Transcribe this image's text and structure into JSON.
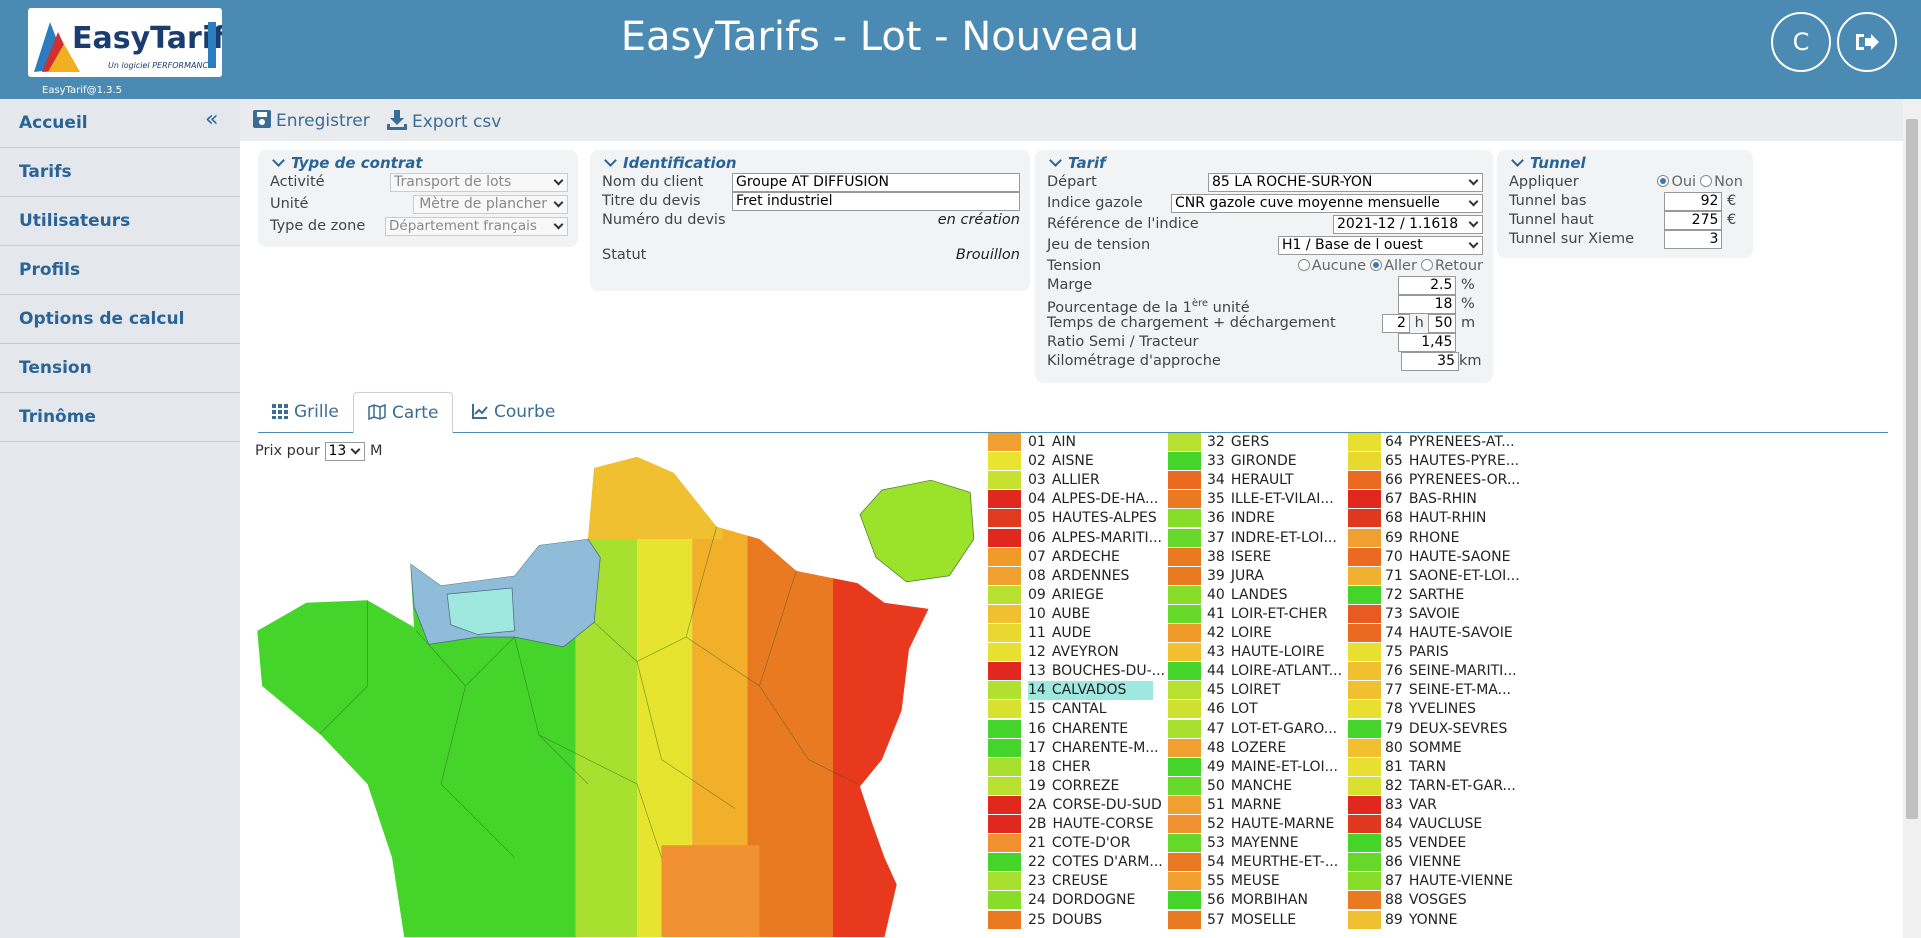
{
  "header": {
    "logo_text": "EasyTarifs",
    "logo_tagline": "Un logiciel PERFORMANCE",
    "version": "EasyTarif@1.3.5",
    "title": "EasyTarifs - Lot - Nouveau",
    "user_initial": "C"
  },
  "sidebar": {
    "items": [
      "Accueil",
      "Tarifs",
      "Utilisateurs",
      "Profils",
      "Options de calcul",
      "Tension",
      "Trinôme"
    ]
  },
  "toolbar": {
    "save": "Enregistrer",
    "export": "Export csv"
  },
  "contrat": {
    "title": "Type de contrat",
    "fields": [
      {
        "label": "Activité",
        "value": "Transport de lots"
      },
      {
        "label": "Unité",
        "value": "Mètre de plancher"
      },
      {
        "label": "Type de zone",
        "value": "Département français"
      }
    ]
  },
  "identification": {
    "title": "Identification",
    "fields": [
      {
        "label": "Nom du client",
        "value": "Groupe AT DIFFUSION"
      },
      {
        "label": "Titre du devis",
        "value": "Fret industriel"
      },
      {
        "label": "Numéro du devis",
        "value": "en création"
      },
      {
        "label": "Statut",
        "value": "Brouillon"
      }
    ]
  },
  "tarif": {
    "title": "Tarif",
    "depart": {
      "label": "Départ",
      "value": "85 LA ROCHE-SUR-YON"
    },
    "indice": {
      "label": "Indice gazole",
      "value": "CNR gazole cuve moyenne mensuelle"
    },
    "reference": {
      "label": "Référence de l'indice",
      "value": "2021-12 / 1.1618"
    },
    "jeu": {
      "label": "Jeu de tension",
      "value": "H1 / Base de l ouest"
    },
    "tension": {
      "label": "Tension",
      "options": [
        "Aucune",
        "Aller",
        "Retour"
      ]
    },
    "marge": {
      "label": "Marge",
      "value": "2.5",
      "unit": "%"
    },
    "pourcentage": {
      "label_parts": [
        "Pourcentage de la 1",
        "ère",
        " unité"
      ],
      "value": "18",
      "unit": "%"
    },
    "temps": {
      "label": "Temps de chargement + déchargement",
      "hours": "2",
      "h": "h",
      "minutes": "50",
      "m": "m"
    },
    "ratio": {
      "label": "Ratio Semi / Tracteur",
      "value": "1,45"
    },
    "km": {
      "label": "Kilométrage d'approche",
      "value": "35",
      "unit": "km"
    }
  },
  "tunnel": {
    "title": "Tunnel",
    "appliquer": {
      "label": "Appliquer",
      "options": [
        "Oui",
        "Non"
      ]
    },
    "bas": {
      "label": "Tunnel bas",
      "value": "92",
      "unit": "€"
    },
    "haut": {
      "label": "Tunnel haut",
      "value": "275",
      "unit": "€"
    },
    "xieme": {
      "label": "Tunnel sur Xieme",
      "value": "3"
    }
  },
  "tabs": [
    "Grille",
    "Carte",
    "Courbe"
  ],
  "prix": {
    "label": "Prix pour",
    "value": "13",
    "unit": "M"
  },
  "departments": [
    {
      "code": "01",
      "name": "AIN",
      "color": "#f0a030"
    },
    {
      "code": "02",
      "name": "AISNE",
      "color": "#e8e430"
    },
    {
      "code": "03",
      "name": "ALLIER",
      "color": "#c8e030"
    },
    {
      "code": "04",
      "name": "ALPES-DE-HA...",
      "color": "#e0281e"
    },
    {
      "code": "05",
      "name": "HAUTES-ALPES",
      "color": "#e03a20"
    },
    {
      "code": "06",
      "name": "ALPES-MARITI...",
      "color": "#e0281e"
    },
    {
      "code": "07",
      "name": "ARDECHE",
      "color": "#f09a2a"
    },
    {
      "code": "08",
      "name": "ARDENNES",
      "color": "#f0a030"
    },
    {
      "code": "09",
      "name": "ARIEGE",
      "color": "#b8e030"
    },
    {
      "code": "10",
      "name": "AUBE",
      "color": "#f0c030"
    },
    {
      "code": "11",
      "name": "AUDE",
      "color": "#e8d830"
    },
    {
      "code": "12",
      "name": "AVEYRON",
      "color": "#e8e030"
    },
    {
      "code": "13",
      "name": "BOUCHES-DU-...",
      "color": "#e0281e"
    },
    {
      "code": "14",
      "name": "CALVADOS",
      "color": "#b0e030",
      "highlighted": true
    },
    {
      "code": "15",
      "name": "CANTAL",
      "color": "#d8e030"
    },
    {
      "code": "16",
      "name": "CHARENTE",
      "color": "#44d42a"
    },
    {
      "code": "17",
      "name": "CHARENTE-M...",
      "color": "#44d42a"
    },
    {
      "code": "18",
      "name": "CHER",
      "color": "#a8e030"
    },
    {
      "code": "19",
      "name": "CORREZE",
      "color": "#b8e030"
    },
    {
      "code": "2A",
      "name": "CORSE-DU-SUD",
      "color": "#e0281e"
    },
    {
      "code": "2B",
      "name": "HAUTE-CORSE",
      "color": "#e0281e"
    },
    {
      "code": "21",
      "name": "COTE-D'OR",
      "color": "#f09030"
    },
    {
      "code": "22",
      "name": "COTES D'ARM...",
      "color": "#44d42a"
    },
    {
      "code": "23",
      "name": "CREUSE",
      "color": "#a8e030"
    },
    {
      "code": "24",
      "name": "DORDOGNE",
      "color": "#88dc2a"
    },
    {
      "code": "25",
      "name": "DOUBS",
      "color": "#ea7a22"
    },
    {
      "code": "32",
      "name": "GERS",
      "color": "#b8e030"
    },
    {
      "code": "33",
      "name": "GIRONDE",
      "color": "#44d42a"
    },
    {
      "code": "34",
      "name": "HERAULT",
      "color": "#ea6a22"
    },
    {
      "code": "35",
      "name": "ILLE-ET-VILAI...",
      "color": "#ea7a22"
    },
    {
      "code": "36",
      "name": "INDRE",
      "color": "#88dc2a"
    },
    {
      "code": "37",
      "name": "INDRE-ET-LOI...",
      "color": "#66d82a"
    },
    {
      "code": "38",
      "name": "ISERE",
      "color": "#ea7a22"
    },
    {
      "code": "39",
      "name": "JURA",
      "color": "#ea7a22"
    },
    {
      "code": "40",
      "name": "LANDES",
      "color": "#88dc2a"
    },
    {
      "code": "41",
      "name": "LOIR-ET-CHER",
      "color": "#66d82a"
    },
    {
      "code": "42",
      "name": "LOIRE",
      "color": "#f09a2a"
    },
    {
      "code": "43",
      "name": "HAUTE-LOIRE",
      "color": "#f0c030"
    },
    {
      "code": "44",
      "name": "LOIRE-ATLANT...",
      "color": "#44d42a"
    },
    {
      "code": "45",
      "name": "LOIRET",
      "color": "#b8e030"
    },
    {
      "code": "46",
      "name": "LOT",
      "color": "#d0e030"
    },
    {
      "code": "47",
      "name": "LOT-ET-GARO...",
      "color": "#a8e030"
    },
    {
      "code": "48",
      "name": "LOZERE",
      "color": "#f0a030"
    },
    {
      "code": "49",
      "name": "MAINE-ET-LOI...",
      "color": "#44d42a"
    },
    {
      "code": "50",
      "name": "MANCHE",
      "color": "#66d82a"
    },
    {
      "code": "51",
      "name": "MARNE",
      "color": "#f0a030"
    },
    {
      "code": "52",
      "name": "HAUTE-MARNE",
      "color": "#f09030"
    },
    {
      "code": "53",
      "name": "MAYENNE",
      "color": "#66d82a"
    },
    {
      "code": "54",
      "name": "MEURTHE-ET-...",
      "color": "#ea7a22"
    },
    {
      "code": "55",
      "name": "MEUSE",
      "color": "#f0a030"
    },
    {
      "code": "56",
      "name": "MORBIHAN",
      "color": "#44d42a"
    },
    {
      "code": "57",
      "name": "MOSELLE",
      "color": "#ea7a22"
    },
    {
      "code": "64",
      "name": "PYRENEES-AT...",
      "color": "#e8e030"
    },
    {
      "code": "65",
      "name": "HAUTES-PYRE...",
      "color": "#e8d830"
    },
    {
      "code": "66",
      "name": "PYRENEES-OR...",
      "color": "#ea6a22"
    },
    {
      "code": "67",
      "name": "BAS-RHIN",
      "color": "#e0281e"
    },
    {
      "code": "68",
      "name": "HAUT-RHIN",
      "color": "#e0381e"
    },
    {
      "code": "69",
      "name": "RHONE",
      "color": "#f0a030"
    },
    {
      "code": "70",
      "name": "HAUTE-SAONE",
      "color": "#ea6a22"
    },
    {
      "code": "71",
      "name": "SAONE-ET-LOI...",
      "color": "#f0b030"
    },
    {
      "code": "72",
      "name": "SARTHE",
      "color": "#44d42a"
    },
    {
      "code": "73",
      "name": "SAVOIE",
      "color": "#e85a22"
    },
    {
      "code": "74",
      "name": "HAUTE-SAVOIE",
      "color": "#ea6a22"
    },
    {
      "code": "75",
      "name": "PARIS",
      "color": "#e8e030"
    },
    {
      "code": "76",
      "name": "SEINE-MARITI...",
      "color": "#f0c030"
    },
    {
      "code": "77",
      "name": "SEINE-ET-MA...",
      "color": "#f0c030"
    },
    {
      "code": "78",
      "name": "YVELINES",
      "color": "#e8e030"
    },
    {
      "code": "79",
      "name": "DEUX-SEVRES",
      "color": "#44d42a"
    },
    {
      "code": "80",
      "name": "SOMME",
      "color": "#f0c030"
    },
    {
      "code": "81",
      "name": "TARN",
      "color": "#e8e030"
    },
    {
      "code": "82",
      "name": "TARN-ET-GAR...",
      "color": "#d8e030"
    },
    {
      "code": "83",
      "name": "VAR",
      "color": "#e0281e"
    },
    {
      "code": "84",
      "name": "VAUCLUSE",
      "color": "#e0381e"
    },
    {
      "code": "85",
      "name": "VENDEE",
      "color": "#44d42a"
    },
    {
      "code": "86",
      "name": "VIENNE",
      "color": "#66d82a"
    },
    {
      "code": "87",
      "name": "HAUTE-VIENNE",
      "color": "#88dc2a"
    },
    {
      "code": "88",
      "name": "VOSGES",
      "color": "#ea7a22"
    },
    {
      "code": "89",
      "name": "YONNE",
      "color": "#f0c030"
    }
  ]
}
